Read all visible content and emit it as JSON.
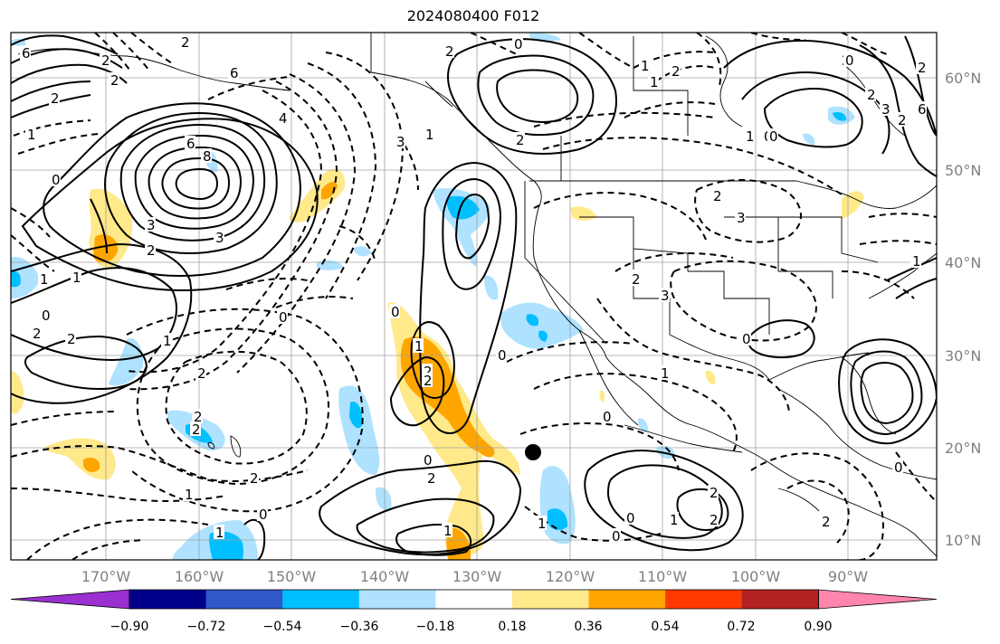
{
  "title": "2024080400 F012",
  "lon_ticks": [
    "170°W",
    "160°W",
    "150°W",
    "140°W",
    "130°W",
    "120°W",
    "110°W",
    "100°W",
    "90°W"
  ],
  "lat_ticks": [
    "60°N",
    "50°N",
    "40°N",
    "30°N",
    "20°N",
    "10°N"
  ],
  "colorbar": {
    "ticks": [
      "−0.90",
      "−0.72",
      "−0.54",
      "−0.36",
      "−0.18",
      "0.18",
      "0.36",
      "0.54",
      "0.72",
      "0.90"
    ],
    "colors": [
      "#9b30d0",
      "#00008b",
      "#3158c9",
      "#00bfff",
      "#aee2ff",
      "#ffffff",
      "#ffe98a",
      "#ffa500",
      "#ff3a00",
      "#b22222",
      "#ff85ad"
    ]
  },
  "contour_labels": [
    "6",
    "2",
    "6",
    "0",
    "1",
    "6",
    "8",
    "4",
    "3",
    "2",
    "0",
    "1",
    "2",
    "1",
    "0",
    "2",
    "2",
    "1",
    "2",
    "0",
    "2",
    "1",
    "3",
    "2",
    "1",
    "0",
    "2",
    "2",
    "3",
    "2",
    "1",
    "0",
    "1",
    "2",
    "2",
    "0",
    "1",
    "0",
    "1",
    "2",
    "1",
    "2",
    "0",
    "2",
    "6",
    "3",
    "1",
    "0",
    "2",
    "0",
    "2",
    "1",
    "0",
    "1",
    "2",
    "3",
    "0",
    "0",
    "2",
    "2",
    "3",
    "2",
    "0",
    "0",
    "2",
    "2",
    "2",
    "1",
    "1",
    "0",
    "2",
    "2"
  ],
  "marker": {
    "name": "storm-center-dot",
    "color": "#000000"
  }
}
